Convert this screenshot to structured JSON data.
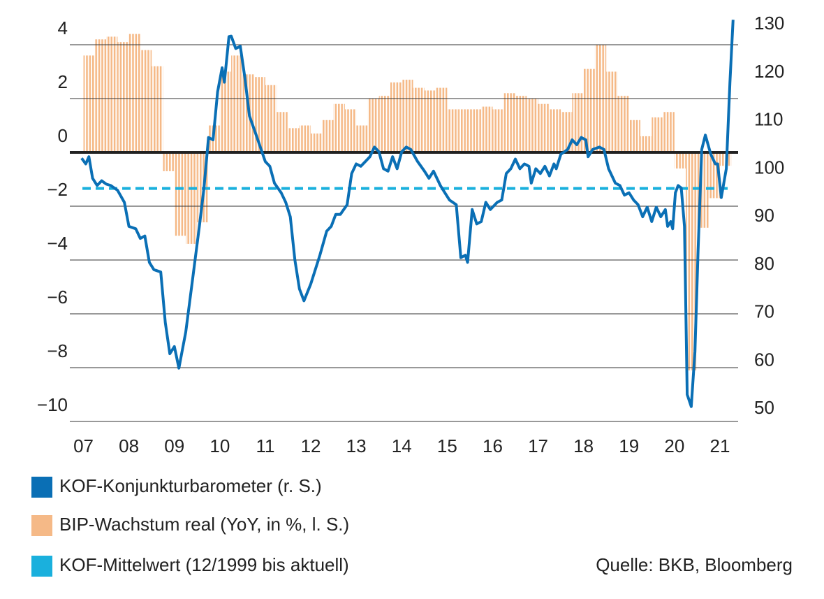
{
  "chart_data": {
    "type": "combo",
    "source": "Quelle: BKB, Bloomberg",
    "xlim": [
      2006.7,
      2021.4
    ],
    "xticks": [
      {
        "value": 2007,
        "label": "07"
      },
      {
        "value": 2008,
        "label": "08"
      },
      {
        "value": 2009,
        "label": "09"
      },
      {
        "value": 2010,
        "label": "10"
      },
      {
        "value": 2011,
        "label": "11"
      },
      {
        "value": 2012,
        "label": "12"
      },
      {
        "value": 2013,
        "label": "13"
      },
      {
        "value": 2014,
        "label": "14"
      },
      {
        "value": 2015,
        "label": "15"
      },
      {
        "value": 2016,
        "label": "16"
      },
      {
        "value": 2017,
        "label": "17"
      },
      {
        "value": 2018,
        "label": "18"
      },
      {
        "value": 2019,
        "label": "19"
      },
      {
        "value": 2020,
        "label": "20"
      },
      {
        "value": 2021,
        "label": "21"
      }
    ],
    "ylim": [
      -10,
      5
    ],
    "yticks": [
      4,
      2,
      0,
      {
        "value": -2,
        "label": "−2"
      },
      {
        "value": -4,
        "label": "−4"
      },
      {
        "value": -6,
        "label": "−6"
      },
      {
        "value": -8,
        "label": "−8"
      },
      {
        "value": -10,
        "label": "−10"
      }
    ],
    "y2lim": [
      47.4,
      131.4
    ],
    "y2ticks": [
      130,
      120,
      110,
      100,
      90,
      80,
      70,
      60,
      50
    ],
    "grid": true,
    "series": [
      {
        "name": "KOF-Konjunkturbarometer (r. S.)",
        "color": "#0a6fb5",
        "axis": "y2",
        "type": "line",
        "x": [
          2006.96,
          2007.05,
          2007.12,
          2007.2,
          2007.3,
          2007.4,
          2007.5,
          2007.6,
          2007.75,
          2007.9,
          2008.0,
          2008.15,
          2008.25,
          2008.35,
          2008.45,
          2008.55,
          2008.7,
          2008.8,
          2008.9,
          2009.0,
          2009.1,
          2009.25,
          2009.4,
          2009.55,
          2009.65,
          2009.75,
          2009.85,
          2009.95,
          2010.05,
          2010.1,
          2010.2,
          2010.25,
          2010.35,
          2010.45,
          2010.55,
          2010.65,
          2010.8,
          2011.0,
          2011.1,
          2011.2,
          2011.35,
          2011.45,
          2011.55,
          2011.65,
          2011.75,
          2011.85,
          2012.0,
          2012.2,
          2012.35,
          2012.45,
          2012.55,
          2012.65,
          2012.8,
          2012.9,
          2013.0,
          2013.1,
          2013.2,
          2013.3,
          2013.4,
          2013.5,
          2013.6,
          2013.7,
          2013.8,
          2013.9,
          2014.0,
          2014.1,
          2014.2,
          2014.35,
          2014.5,
          2014.6,
          2014.7,
          2014.85,
          2014.95,
          2015.05,
          2015.2,
          2015.3,
          2015.4,
          2015.45,
          2015.55,
          2015.65,
          2015.75,
          2015.85,
          2015.95,
          2016.1,
          2016.2,
          2016.3,
          2016.4,
          2016.5,
          2016.6,
          2016.7,
          2016.8,
          2016.85,
          2016.95,
          2017.05,
          2017.15,
          2017.25,
          2017.35,
          2017.4,
          2017.5,
          2017.65,
          2017.75,
          2017.85,
          2017.95,
          2018.05,
          2018.1,
          2018.2,
          2018.35,
          2018.45,
          2018.55,
          2018.7,
          2018.8,
          2018.9,
          2019.0,
          2019.1,
          2019.2,
          2019.3,
          2019.4,
          2019.5,
          2019.6,
          2019.7,
          2019.8,
          2019.85,
          2019.92,
          2019.96,
          2020.02,
          2020.08,
          2020.15,
          2020.22,
          2020.28,
          2020.37,
          2020.45,
          2020.52,
          2020.6,
          2020.68,
          2020.8,
          2020.9,
          2020.95,
          2021.03,
          2021.14,
          2021.22,
          2021.29
        ],
        "values": [
          102.2,
          101,
          102.5,
          98,
          96.5,
          97.5,
          96.8,
          96.5,
          95.5,
          93,
          88,
          87.5,
          85.5,
          86,
          80.5,
          79,
          78.5,
          68,
          61.5,
          63,
          58.5,
          66,
          77,
          88,
          96,
          106.5,
          106,
          116,
          121,
          118,
          127.5,
          127.6,
          125,
          125.5,
          119,
          111,
          107,
          101.5,
          100.5,
          97,
          95,
          93,
          90,
          81,
          75,
          72.5,
          76,
          82,
          87,
          88,
          90.5,
          90.5,
          92.5,
          99,
          101,
          100.5,
          101.5,
          102.5,
          104.5,
          103.5,
          100,
          99.5,
          102.5,
          100,
          103.5,
          104.5,
          104,
          101.5,
          99.5,
          98,
          99.5,
          96.5,
          95,
          93.5,
          92.5,
          81.5,
          82,
          80.5,
          91.5,
          88.5,
          89,
          93,
          91.5,
          93,
          93.5,
          99,
          100,
          102,
          100,
          101,
          100.5,
          97,
          100,
          99,
          100.5,
          98.5,
          101,
          100,
          103,
          104,
          106,
          105,
          106.5,
          106,
          102.5,
          104,
          104.5,
          104,
          100,
          97,
          96.5,
          94.5,
          95,
          93.5,
          92.5,
          90,
          92,
          89,
          92,
          90,
          91.5,
          88,
          89,
          87.5,
          95,
          96.5,
          96,
          88,
          53,
          50.5,
          62,
          83,
          104,
          107,
          103,
          101,
          101,
          94,
          100,
          118,
          131
        ]
      },
      {
        "name": "BIP-Wachstum real (YoY, in %, l. S.)",
        "color": "#f5b987",
        "type": "bar",
        "x": [
          2007,
          2007.25,
          2007.5,
          2007.75,
          2008,
          2008.25,
          2008.5,
          2008.75,
          2009,
          2009.25,
          2009.5,
          2009.75,
          2010,
          2010.25,
          2010.5,
          2010.75,
          2011,
          2011.25,
          2011.5,
          2011.75,
          2012,
          2012.25,
          2012.5,
          2012.75,
          2013,
          2013.25,
          2013.5,
          2013.75,
          2014,
          2014.25,
          2014.5,
          2014.75,
          2015,
          2015.25,
          2015.5,
          2015.75,
          2016,
          2016.25,
          2016.5,
          2016.75,
          2017,
          2017.25,
          2017.5,
          2017.75,
          2018,
          2018.25,
          2018.5,
          2018.75,
          2019,
          2019.25,
          2019.5,
          2019.75,
          2020,
          2020.25,
          2020.5,
          2020.75,
          2021
        ],
        "values": [
          3.6,
          4.2,
          4.3,
          4.1,
          4.4,
          3.8,
          3.2,
          -0.7,
          -3.1,
          -3.4,
          -2.6,
          1.0,
          3.0,
          3.6,
          2.9,
          2.8,
          2.5,
          1.5,
          0.9,
          1.0,
          0.7,
          1.2,
          1.8,
          1.6,
          1.0,
          2.0,
          2.1,
          2.6,
          2.7,
          2.4,
          2.3,
          2.4,
          1.6,
          1.6,
          1.6,
          1.7,
          1.6,
          2.2,
          2.1,
          2.0,
          1.8,
          1.6,
          1.5,
          2.2,
          3.1,
          4.0,
          3.0,
          2.1,
          1.2,
          0.6,
          1.3,
          1.5,
          -0.6,
          -8.1,
          -2.8,
          -1.7,
          -0.5
        ]
      },
      {
        "name": "KOF-Mittelwert (12/1999 bis aktuell)",
        "color": "#1ab0dd",
        "axis": "y2",
        "type": "hline",
        "values": [
          95.9
        ]
      }
    ]
  }
}
